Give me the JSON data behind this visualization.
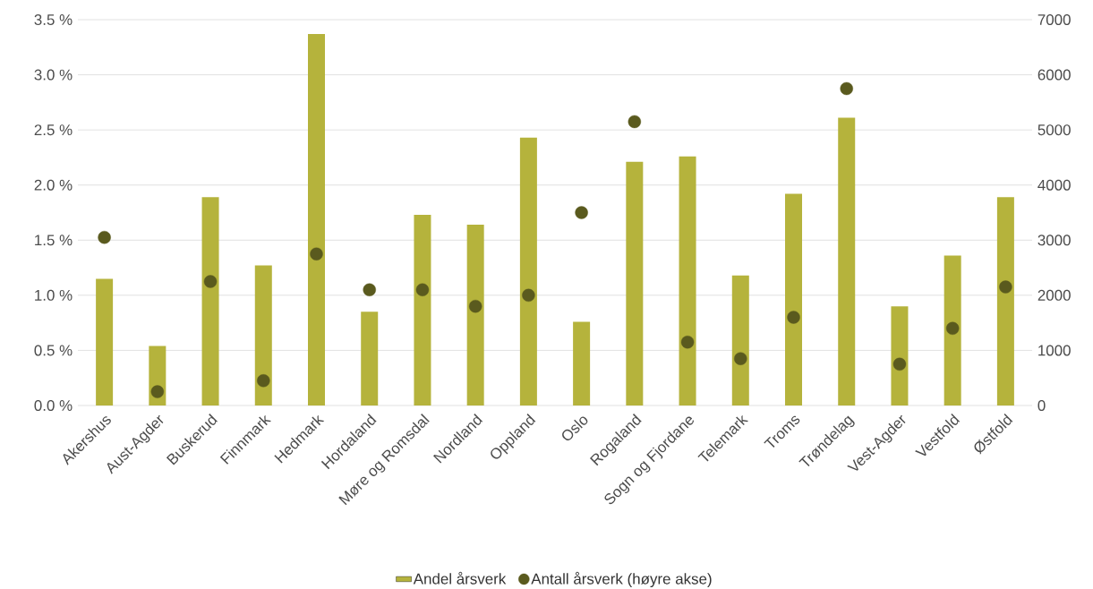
{
  "chart_data": {
    "type": "bar",
    "categories": [
      "Akershus",
      "Aust-Agder",
      "Buskerud",
      "Finnmark",
      "Hedmark",
      "Hordaland",
      "Møre og Romsdal",
      "Nordland",
      "Oppland",
      "Oslo",
      "Rogaland",
      "Sogn og Fjordane",
      "Telemark",
      "Troms",
      "Trøndelag",
      "Vest-Agder",
      "Vestfold",
      "Østfold"
    ],
    "series": [
      {
        "name": "Andel årsverk",
        "color": "#b5b33c",
        "values": [
          1.15,
          0.54,
          1.89,
          1.27,
          3.37,
          0.85,
          1.73,
          1.64,
          2.43,
          0.76,
          2.21,
          2.26,
          1.18,
          1.92,
          2.61,
          0.9,
          1.36,
          1.89
        ]
      },
      {
        "name": "Antall årsverk (høyre akse)",
        "type": "scatter",
        "axis": "y2",
        "color": "#5a5a1e",
        "values": [
          3050,
          250,
          2250,
          450,
          2750,
          2100,
          2100,
          1800,
          2000,
          3500,
          5150,
          1150,
          850,
          1600,
          5750,
          750,
          1400,
          2150
        ]
      }
    ],
    "ylim": [
      0,
      3.5
    ],
    "yticks": [
      {
        "value": 0,
        "label": "0.0 %"
      },
      {
        "value": 0.5,
        "label": "0.5 %"
      },
      {
        "value": 1,
        "label": "1.0 %"
      },
      {
        "value": 1.5,
        "label": "1.5 %"
      },
      {
        "value": 2,
        "label": "2.0 %"
      },
      {
        "value": 2.5,
        "label": "2.5 %"
      },
      {
        "value": 3,
        "label": "3.0 %"
      },
      {
        "value": 3.5,
        "label": "3.5 %"
      }
    ],
    "y2lim": [
      0,
      7000
    ],
    "y2ticks": [
      0,
      1000,
      2000,
      3000,
      4000,
      5000,
      6000,
      7000
    ],
    "grid": "y",
    "legend": "bottom"
  }
}
